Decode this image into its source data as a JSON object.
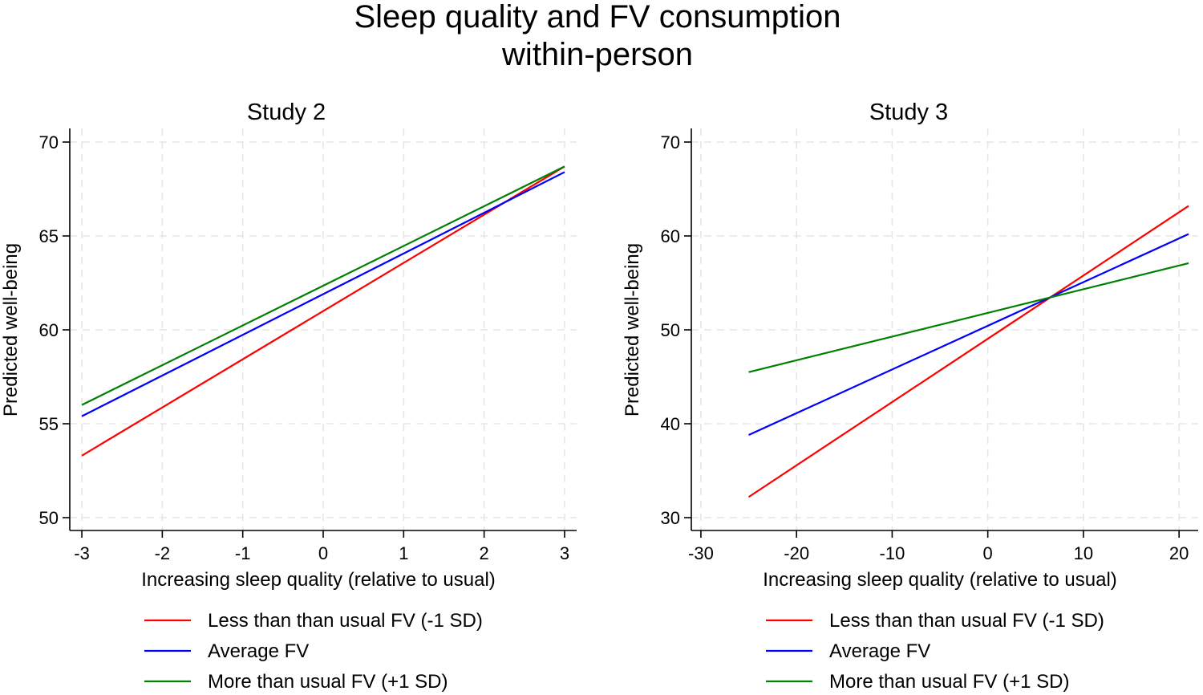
{
  "figure": {
    "title_line1": "Sleep quality and FV consumption",
    "title_line2": "within-person"
  },
  "chart_data": [
    {
      "type": "line",
      "title": "Study 2",
      "xlabel": "Increasing sleep quality (relative to usual)",
      "ylabel": "Predicted well-being",
      "xlim": [
        -3.15,
        3.15
      ],
      "ylim": [
        50,
        70
      ],
      "xticks": [
        -3,
        -2,
        -1,
        0,
        1,
        2,
        3
      ],
      "yticks": [
        50,
        55,
        60,
        65,
        70
      ],
      "grid": true,
      "legend_position": "bottom",
      "series": [
        {
          "name": "Less than than usual FV (-1 SD)",
          "color": "#ff0000",
          "x": [
            -3,
            3
          ],
          "y": [
            53.3,
            68.7
          ]
        },
        {
          "name": "Average FV",
          "color": "#0000ff",
          "x": [
            -3,
            3
          ],
          "y": [
            55.4,
            68.4
          ]
        },
        {
          "name": "More than usual FV (+1 SD)",
          "color": "#008000",
          "x": [
            -3,
            3
          ],
          "y": [
            56.0,
            68.7
          ]
        }
      ]
    },
    {
      "type": "line",
      "title": "Study 3",
      "xlabel": "Increasing sleep quality (relative to usual)",
      "ylabel": "Predicted well-being",
      "xlim": [
        -31,
        22
      ],
      "ylim": [
        30,
        70
      ],
      "xticks": [
        -30,
        -20,
        -10,
        0,
        10,
        20
      ],
      "yticks": [
        30,
        40,
        50,
        60,
        70
      ],
      "grid": true,
      "legend_position": "bottom",
      "series": [
        {
          "name": "Less than than usual FV (-1 SD)",
          "color": "#ff0000",
          "x": [
            -25,
            21
          ],
          "y": [
            32.2,
            63.2
          ]
        },
        {
          "name": "Average FV",
          "color": "#0000ff",
          "x": [
            -25,
            21
          ],
          "y": [
            38.8,
            60.2
          ]
        },
        {
          "name": "More than usual FV (+1 SD)",
          "color": "#008000",
          "x": [
            -25,
            21
          ],
          "y": [
            45.5,
            57.1
          ]
        }
      ]
    }
  ]
}
